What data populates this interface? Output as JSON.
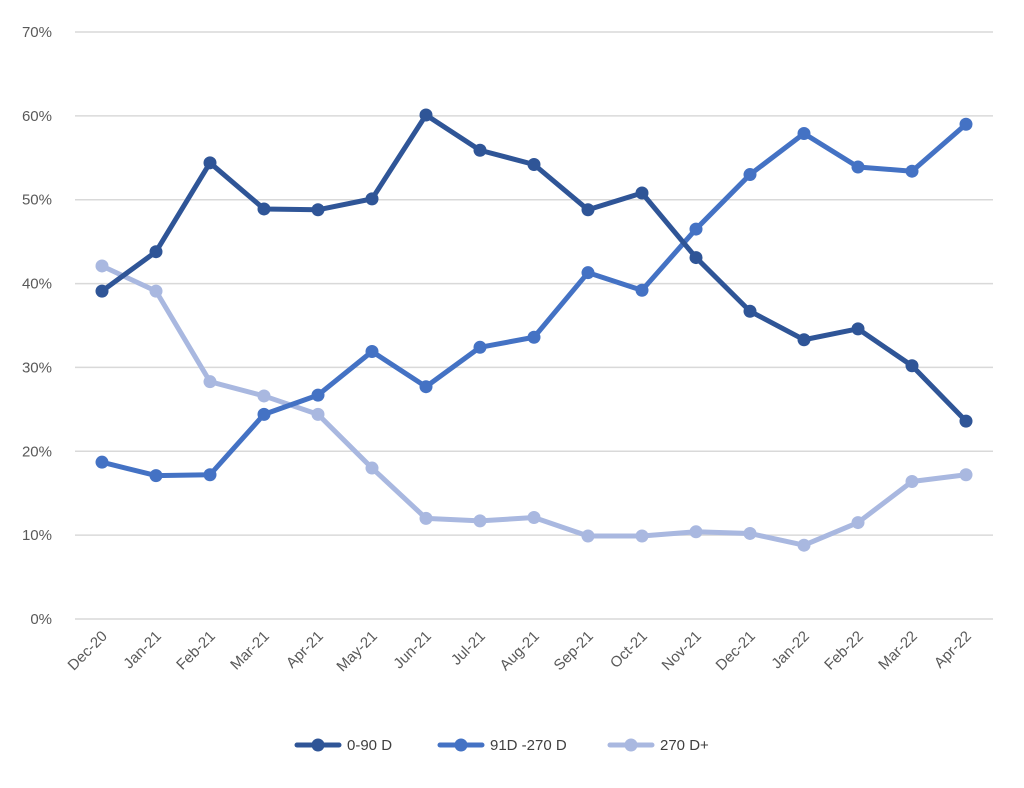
{
  "chart_data": {
    "type": "line",
    "title": "",
    "xlabel": "",
    "ylabel": "",
    "ylim": [
      0,
      70
    ],
    "yticks": [
      0,
      10,
      20,
      30,
      40,
      50,
      60,
      70
    ],
    "ytick_labels": [
      "0%",
      "10%",
      "20%",
      "30%",
      "40%",
      "50%",
      "60%",
      "70%"
    ],
    "grid": true,
    "legend_position": "bottom",
    "categories": [
      "Dec-20",
      "Jan-21",
      "Feb-21",
      "Mar-21",
      "Apr-21",
      "May-21",
      "Jun-21",
      "Jul-21",
      "Aug-21",
      "Sep-21",
      "Oct-21",
      "Nov-21",
      "Dec-21",
      "Jan-22",
      "Feb-22",
      "Mar-22",
      "Apr-22"
    ],
    "series": [
      {
        "name": "0-90 D",
        "color": "#2f5597",
        "values": [
          39.1,
          43.8,
          54.4,
          48.9,
          48.8,
          50.1,
          60.1,
          55.9,
          54.2,
          48.8,
          50.8,
          43.1,
          36.7,
          33.3,
          34.6,
          30.2,
          23.6
        ]
      },
      {
        "name": "91D -270 D",
        "color": "#4472c4",
        "values": [
          18.7,
          17.1,
          17.2,
          24.4,
          26.7,
          31.9,
          27.7,
          32.4,
          33.6,
          41.3,
          39.2,
          46.5,
          53.0,
          57.9,
          53.9,
          53.4,
          59.0
        ]
      },
      {
        "name": "270 D+",
        "color": "#a9b8e0",
        "values": [
          42.1,
          39.1,
          28.3,
          26.6,
          24.4,
          18.0,
          12.0,
          11.7,
          12.1,
          9.9,
          9.9,
          10.4,
          10.2,
          8.8,
          11.5,
          16.4,
          17.2
        ]
      }
    ]
  }
}
